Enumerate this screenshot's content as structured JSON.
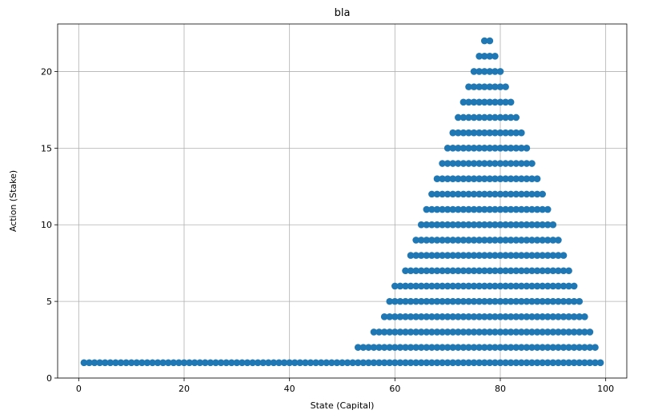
{
  "chart_data": {
    "type": "scatter",
    "title": "bla",
    "xlabel": "State (Capital)",
    "ylabel": "Action (Stake)",
    "xlim": [
      -4,
      104
    ],
    "ylim": [
      0,
      23.1
    ],
    "xticks": [
      0,
      20,
      40,
      60,
      80,
      100
    ],
    "yticks": [
      0,
      5,
      10,
      15,
      20
    ],
    "grid": true,
    "marker_color": "#1f77b4",
    "series": [
      {
        "ranges": [
          [
            1,
            1,
            99
          ],
          [
            2,
            53,
            98
          ],
          [
            3,
            56,
            97
          ],
          [
            4,
            58,
            96
          ],
          [
            5,
            59,
            95
          ],
          [
            6,
            60,
            94
          ],
          [
            7,
            62,
            93
          ],
          [
            8,
            63,
            92
          ],
          [
            9,
            64,
            91
          ],
          [
            10,
            65,
            90
          ],
          [
            11,
            66,
            89
          ],
          [
            12,
            67,
            88
          ],
          [
            13,
            68,
            87
          ],
          [
            14,
            69,
            86
          ],
          [
            15,
            70,
            85
          ],
          [
            16,
            71,
            84
          ],
          [
            17,
            72,
            83
          ],
          [
            18,
            73,
            82
          ],
          [
            19,
            74,
            81
          ],
          [
            20,
            75,
            80
          ],
          [
            21,
            76,
            79
          ],
          [
            22,
            77,
            78
          ]
        ]
      }
    ]
  }
}
